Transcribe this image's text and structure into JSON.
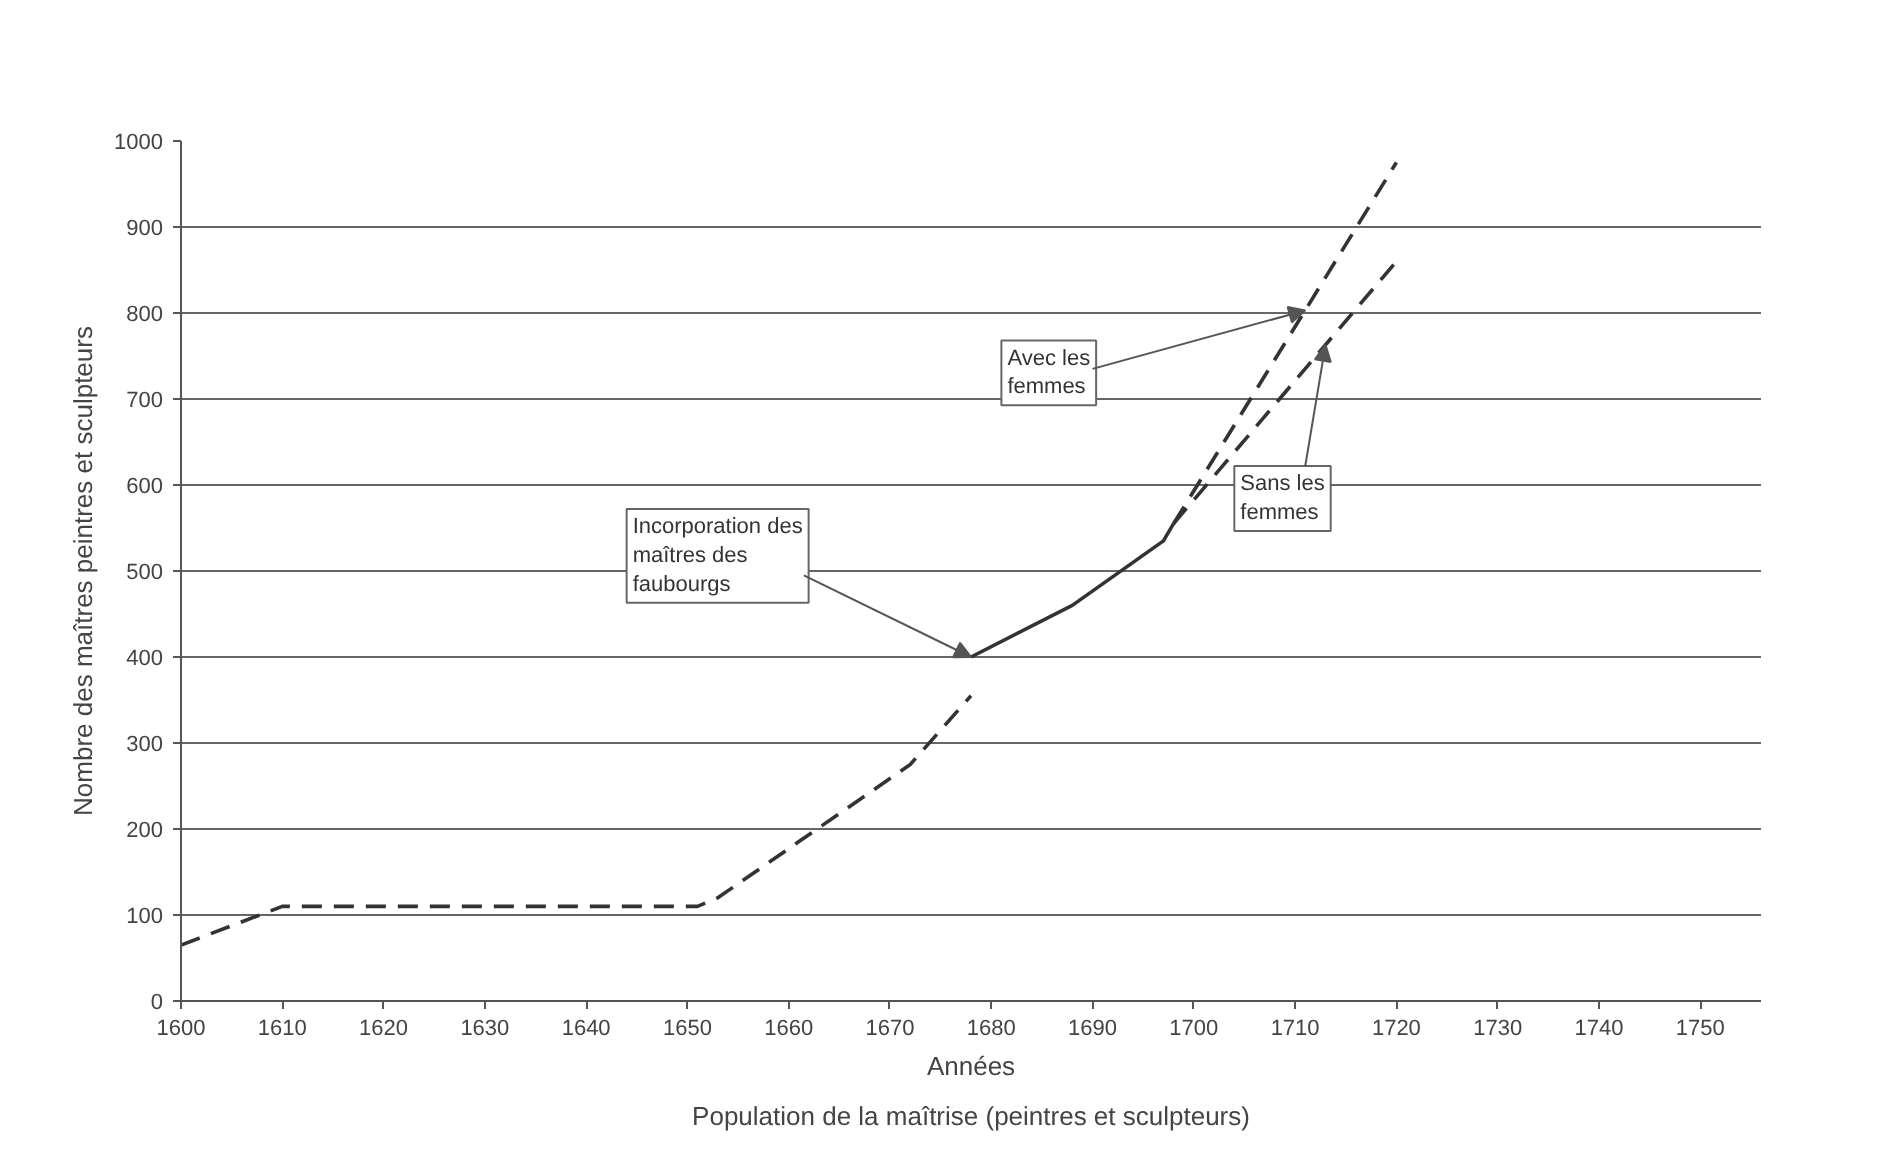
{
  "chart_data": {
    "type": "line",
    "xlabel": "Années",
    "ylabel": "Nombre des maîtres peintres et sculpteurs",
    "xlim": [
      1600,
      1756
    ],
    "xticks": [
      1600,
      1610,
      1620,
      1630,
      1640,
      1650,
      1660,
      1670,
      1680,
      1690,
      1700,
      1710,
      1720,
      1730,
      1740,
      1750
    ],
    "ylim": [
      0,
      1000
    ],
    "yticks": [
      0,
      100,
      200,
      300,
      400,
      500,
      600,
      700,
      800,
      900,
      1000
    ],
    "grid": "y",
    "series": [
      {
        "color": "#333333",
        "line_style": "dashed",
        "x": [
          1600,
          1610,
          1651,
          1653,
          1672,
          1678
        ],
        "values": [
          65,
          110,
          110,
          120,
          275,
          355
        ]
      },
      {
        "color": "#333333",
        "line_style": "solid",
        "x": [
          1678,
          1688,
          1697,
          1698
        ],
        "values": [
          400,
          460,
          535,
          555
        ]
      },
      {
        "color": "#333333",
        "line_style": "dashed",
        "x": [
          1698,
          1720
        ],
        "values": [
          555,
          975
        ]
      },
      {
        "color": "#333333",
        "line_style": "dashed",
        "x": [
          1698,
          1720
        ],
        "values": [
          555,
          860
        ]
      }
    ],
    "annotations": [
      {
        "text": "Incorporation des maîtres des faubourgs",
        "x": 1678,
        "y": 400
      },
      {
        "text": "Avec les femmes",
        "x": 1711,
        "y": 803
      },
      {
        "text": "Sans les femmes",
        "x": 1713,
        "y": 763
      },
      "Population de la maîtrise (peintres et sculpteurs)"
    ]
  }
}
